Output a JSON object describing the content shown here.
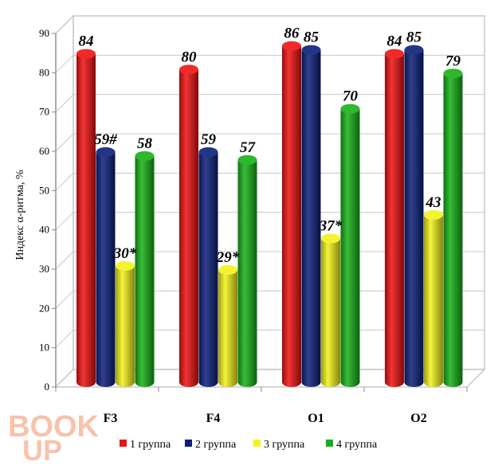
{
  "watermark": {
    "line1": "BOOK",
    "line2": "UP"
  },
  "chart_data": {
    "type": "bar",
    "title": "",
    "xlabel": "",
    "ylabel": "Индекс α-ритма, %",
    "ylim": [
      0,
      90
    ],
    "yticks": [
      0,
      10,
      20,
      30,
      40,
      50,
      60,
      70,
      80,
      90
    ],
    "categories": [
      "F3",
      "F4",
      "O1",
      "O2"
    ],
    "legend_position": "bottom",
    "grid": true,
    "series": [
      {
        "name": "1 группа",
        "color": "#ee1111",
        "values": [
          84,
          80,
          86,
          84
        ],
        "labels": [
          "84",
          "80",
          "86",
          "84"
        ]
      },
      {
        "name": "2 группа",
        "color": "#0b1f7a",
        "values": [
          59,
          59,
          85,
          85
        ],
        "labels": [
          "59#",
          "59",
          "85",
          "85"
        ]
      },
      {
        "name": "3 группа",
        "color": "#f2f21a",
        "values": [
          30,
          29,
          37,
          43
        ],
        "labels": [
          "30*",
          "29*",
          "37*",
          "43"
        ]
      },
      {
        "name": "4 группа",
        "color": "#16b016",
        "values": [
          58,
          57,
          70,
          79
        ],
        "labels": [
          "58",
          "57",
          "70",
          "79"
        ]
      }
    ]
  }
}
